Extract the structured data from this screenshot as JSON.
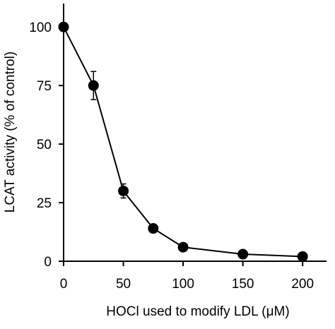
{
  "chart_data": {
    "type": "line",
    "title": "",
    "xlabel": "HOCl used to modify LDL (μM)",
    "ylabel": "LCAT activity (% of control)",
    "xlim": [
      0,
      220
    ],
    "ylim": [
      0,
      110
    ],
    "xticks": [
      0,
      50,
      100,
      150,
      200
    ],
    "yticks": [
      0,
      25,
      50,
      75,
      100
    ],
    "xtick_labels": [
      "0",
      "50",
      "100",
      "150",
      "200"
    ],
    "ytick_labels": [
      "0",
      "25",
      "50",
      "75",
      "100"
    ],
    "grid": false,
    "legend": "none",
    "series": [
      {
        "x": [
          0,
          25,
          50,
          75,
          100,
          150,
          200
        ],
        "y": [
          100,
          75,
          30,
          14,
          6,
          3,
          2
        ],
        "error": [
          0,
          6,
          3,
          0,
          0,
          0,
          0
        ],
        "marker": "filled-circle",
        "color": "#000000"
      }
    ]
  }
}
